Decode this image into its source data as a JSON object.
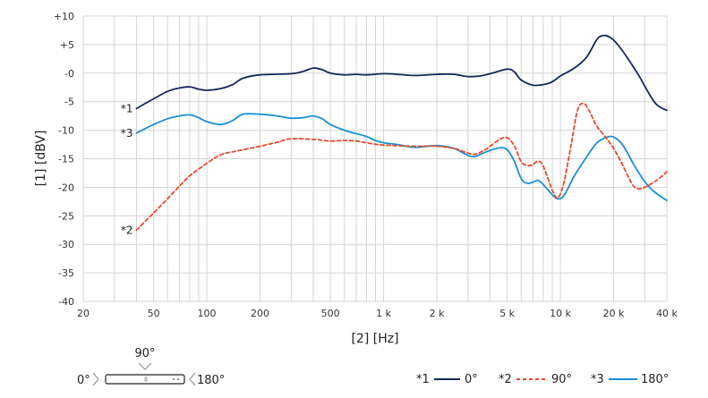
{
  "chart_data": {
    "type": "line",
    "x_scale": "log",
    "xlabel": "[2] [Hz]",
    "ylabel": "[1] [dBV]",
    "xlim": [
      20,
      40000
    ],
    "ylim": [
      -40,
      10
    ],
    "grid": true,
    "x_ticks": [
      {
        "value": 20,
        "label": "20"
      },
      {
        "value": 50,
        "label": "50"
      },
      {
        "value": 100,
        "label": "100"
      },
      {
        "value": 200,
        "label": "200"
      },
      {
        "value": 500,
        "label": "500"
      },
      {
        "value": 1000,
        "label": "1 k"
      },
      {
        "value": 2000,
        "label": "2 k"
      },
      {
        "value": 5000,
        "label": "5 k"
      },
      {
        "value": 10000,
        "label": "10 k"
      },
      {
        "value": 20000,
        "label": "20 k"
      },
      {
        "value": 40000,
        "label": "40 k"
      }
    ],
    "y_ticks": [
      {
        "value": 10,
        "label": "+10"
      },
      {
        "value": 5,
        "label": "+5"
      },
      {
        "value": 0,
        "label": "-0"
      },
      {
        "value": -5,
        "label": "-5"
      },
      {
        "value": -10,
        "label": "-10"
      },
      {
        "value": -15,
        "label": "-15"
      },
      {
        "value": -20,
        "label": "-20"
      },
      {
        "value": -25,
        "label": "-25"
      },
      {
        "value": -30,
        "label": "-30"
      },
      {
        "value": -35,
        "label": "-35"
      },
      {
        "value": -40,
        "label": "-40"
      }
    ],
    "legend_position": "bottom-right",
    "series": [
      {
        "marker": "*1",
        "name": "0°",
        "color": "#14285a",
        "dash": "solid",
        "points": [
          [
            40,
            -6.2
          ],
          [
            50,
            -4.5
          ],
          [
            60,
            -3.2
          ],
          [
            70,
            -2.6
          ],
          [
            80,
            -2.4
          ],
          [
            90,
            -2.8
          ],
          [
            100,
            -3.0
          ],
          [
            120,
            -2.7
          ],
          [
            140,
            -2.0
          ],
          [
            160,
            -0.9
          ],
          [
            200,
            -0.3
          ],
          [
            300,
            -0.1
          ],
          [
            350,
            0.3
          ],
          [
            400,
            0.9
          ],
          [
            450,
            0.6
          ],
          [
            500,
            0.0
          ],
          [
            600,
            -0.3
          ],
          [
            700,
            -0.2
          ],
          [
            800,
            -0.3
          ],
          [
            1000,
            -0.1
          ],
          [
            1200,
            -0.2
          ],
          [
            1500,
            -0.4
          ],
          [
            2000,
            -0.2
          ],
          [
            2500,
            -0.2
          ],
          [
            3000,
            -0.6
          ],
          [
            3500,
            -0.5
          ],
          [
            4000,
            -0.1
          ],
          [
            5000,
            0.7
          ],
          [
            5500,
            0.2
          ],
          [
            6000,
            -1.2
          ],
          [
            7000,
            -2.1
          ],
          [
            8000,
            -2.0
          ],
          [
            9000,
            -1.5
          ],
          [
            10000,
            -0.5
          ],
          [
            12000,
            0.9
          ],
          [
            14000,
            2.7
          ],
          [
            16000,
            5.8
          ],
          [
            17000,
            6.5
          ],
          [
            18000,
            6.6
          ],
          [
            19000,
            6.3
          ],
          [
            20000,
            5.8
          ],
          [
            22000,
            4.3
          ],
          [
            25000,
            1.8
          ],
          [
            28000,
            -0.6
          ],
          [
            32000,
            -3.8
          ],
          [
            35000,
            -5.5
          ],
          [
            38000,
            -6.2
          ],
          [
            40000,
            -6.5
          ]
        ]
      },
      {
        "marker": "*2",
        "name": "90°",
        "color": "#e8492a",
        "dash": "dashed",
        "points": [
          [
            40,
            -27.5
          ],
          [
            50,
            -24.5
          ],
          [
            60,
            -22.0
          ],
          [
            70,
            -19.8
          ],
          [
            80,
            -18.0
          ],
          [
            100,
            -15.8
          ],
          [
            120,
            -14.3
          ],
          [
            150,
            -13.6
          ],
          [
            200,
            -12.8
          ],
          [
            250,
            -12.1
          ],
          [
            300,
            -11.5
          ],
          [
            400,
            -11.6
          ],
          [
            500,
            -11.9
          ],
          [
            600,
            -11.8
          ],
          [
            700,
            -11.9
          ],
          [
            800,
            -12.2
          ],
          [
            1000,
            -12.6
          ],
          [
            1500,
            -12.8
          ],
          [
            2000,
            -12.8
          ],
          [
            2500,
            -13.2
          ],
          [
            3000,
            -14.0
          ],
          [
            3300,
            -14.2
          ],
          [
            3800,
            -13.3
          ],
          [
            4500,
            -11.7
          ],
          [
            5000,
            -11.3
          ],
          [
            5500,
            -12.8
          ],
          [
            6000,
            -15.5
          ],
          [
            6500,
            -16.2
          ],
          [
            7000,
            -16.0
          ],
          [
            7500,
            -15.4
          ],
          [
            8000,
            -16.3
          ],
          [
            9000,
            -20.5
          ],
          [
            9700,
            -21.8
          ],
          [
            10500,
            -19.0
          ],
          [
            11500,
            -12.5
          ],
          [
            12500,
            -6.5
          ],
          [
            13500,
            -5.3
          ],
          [
            14500,
            -6.5
          ],
          [
            16000,
            -9.2
          ],
          [
            18000,
            -11.2
          ],
          [
            20000,
            -13.2
          ],
          [
            22000,
            -15.5
          ],
          [
            25000,
            -19.0
          ],
          [
            27000,
            -20.2
          ],
          [
            30000,
            -20.0
          ],
          [
            35000,
            -18.8
          ],
          [
            40000,
            -17.3
          ]
        ]
      },
      {
        "marker": "*3",
        "name": "180°",
        "color": "#1a8fd6",
        "dash": "solid",
        "points": [
          [
            40,
            -10.5
          ],
          [
            50,
            -9.0
          ],
          [
            60,
            -8.0
          ],
          [
            70,
            -7.5
          ],
          [
            80,
            -7.3
          ],
          [
            90,
            -7.8
          ],
          [
            100,
            -8.5
          ],
          [
            120,
            -9.0
          ],
          [
            140,
            -8.3
          ],
          [
            160,
            -7.2
          ],
          [
            200,
            -7.2
          ],
          [
            250,
            -7.5
          ],
          [
            300,
            -7.9
          ],
          [
            350,
            -7.8
          ],
          [
            400,
            -7.5
          ],
          [
            450,
            -8.0
          ],
          [
            500,
            -9.0
          ],
          [
            600,
            -10.0
          ],
          [
            700,
            -10.6
          ],
          [
            800,
            -11.1
          ],
          [
            900,
            -11.8
          ],
          [
            1000,
            -12.2
          ],
          [
            1200,
            -12.5
          ],
          [
            1500,
            -13.0
          ],
          [
            2000,
            -12.7
          ],
          [
            2500,
            -13.2
          ],
          [
            3000,
            -14.4
          ],
          [
            3300,
            -14.6
          ],
          [
            3800,
            -13.8
          ],
          [
            4500,
            -13.1
          ],
          [
            5000,
            -13.4
          ],
          [
            5500,
            -15.5
          ],
          [
            6000,
            -18.5
          ],
          [
            6500,
            -19.3
          ],
          [
            7000,
            -19.1
          ],
          [
            7500,
            -18.8
          ],
          [
            8000,
            -19.5
          ],
          [
            9000,
            -21.3
          ],
          [
            9700,
            -22.0
          ],
          [
            10500,
            -21.4
          ],
          [
            12000,
            -18.0
          ],
          [
            14000,
            -14.8
          ],
          [
            16000,
            -12.3
          ],
          [
            18000,
            -11.3
          ],
          [
            19500,
            -11.1
          ],
          [
            21000,
            -11.6
          ],
          [
            23000,
            -13.0
          ],
          [
            26000,
            -16.0
          ],
          [
            30000,
            -19.0
          ],
          [
            34000,
            -20.8
          ],
          [
            40000,
            -22.3
          ]
        ]
      }
    ]
  },
  "direction": {
    "top_label": "90°",
    "left_label": "0°",
    "right_label": "180°"
  }
}
